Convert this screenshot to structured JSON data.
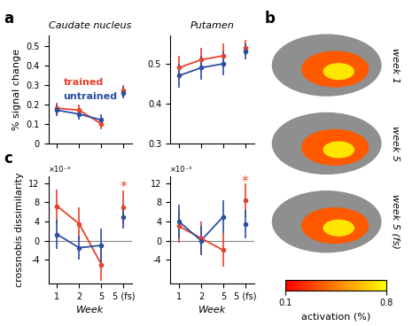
{
  "chart_data": [
    {
      "type": "line",
      "panel": "a",
      "title": "Caudate nucleus",
      "ylabel": "% signal change",
      "categories": [
        "1",
        "2",
        "5",
        "5 (fs)"
      ],
      "ylim": [
        0,
        0.55
      ],
      "yticks": [
        0,
        0.1,
        0.2,
        0.3,
        0.4,
        0.5
      ],
      "tick_labels": "y",
      "legend": "center",
      "marker": "o",
      "series": [
        {
          "name": "trained",
          "color": "#e8412c",
          "values": [
            0.18,
            0.17,
            0.1,
            0.27
          ],
          "errors": [
            0.03,
            0.03,
            0.03,
            0.03
          ]
        },
        {
          "name": "untrained",
          "color": "#2b4ea2",
          "values": [
            0.17,
            0.15,
            0.12,
            0.26
          ],
          "errors": [
            0.03,
            0.03,
            0.03,
            0.03
          ]
        }
      ]
    },
    {
      "type": "line",
      "title": "Putamen",
      "categories": [
        "1",
        "2",
        "5",
        "5 (fs)"
      ],
      "ylim": [
        0.3,
        0.57
      ],
      "yticks": [
        0.3,
        0.4,
        0.5
      ],
      "tick_labels": "y",
      "marker": "o",
      "series": [
        {
          "color": "#e8412c",
          "values": [
            0.49,
            0.51,
            0.52,
            0.54
          ],
          "errors": [
            0.03,
            0.03,
            0.03,
            0.02
          ]
        },
        {
          "color": "#2b4ea2",
          "values": [
            0.47,
            0.49,
            0.5,
            0.53
          ],
          "errors": [
            0.03,
            0.03,
            0.03,
            0.02
          ]
        }
      ]
    },
    {
      "type": "line",
      "panel": "c",
      "ylabel": "crossnobis dissimilarity",
      "xlabel": "Week",
      "axis_note": "×10⁻³",
      "categories": [
        "1",
        "2",
        "5",
        "5 (fs)"
      ],
      "ylim": [
        -9,
        13.5
      ],
      "yticks": [
        -4,
        0,
        4,
        8,
        12
      ],
      "baseline": 0,
      "marker": "o",
      "annotations": [
        {
          "text": "*",
          "x": "5 (fs)",
          "y": 11.2,
          "color": "#e8412c"
        }
      ],
      "series": [
        {
          "color": "#e8412c",
          "values": [
            7.2,
            3.5,
            -5.0,
            7.0
          ],
          "errors": [
            3.5,
            3.5,
            3.5,
            3.5
          ]
        },
        {
          "color": "#2b4ea2",
          "values": [
            1.3,
            -1.5,
            -1.0,
            5.0
          ],
          "errors": [
            3.0,
            2.5,
            3.5,
            2.5
          ]
        }
      ]
    },
    {
      "type": "line",
      "xlabel": "Week",
      "axis_note": "×10⁻³",
      "categories": [
        "1",
        "2",
        "5",
        "5 (fs)"
      ],
      "ylim": [
        -9,
        13.5
      ],
      "yticks": [
        -4,
        0,
        4,
        8,
        12
      ],
      "baseline": 0,
      "marker": "o",
      "annotations": [
        {
          "text": "*",
          "x": "5 (fs)",
          "y": 12.2,
          "color": "#e8412c"
        }
      ],
      "series": [
        {
          "color": "#e8412c",
          "values": [
            3.0,
            0.5,
            -2.0,
            8.5
          ],
          "errors": [
            3.5,
            3.5,
            3.5,
            3.5
          ]
        },
        {
          "color": "#2b4ea2",
          "values": [
            4.0,
            0.0,
            5.0,
            3.5
          ],
          "errors": [
            3.5,
            3.0,
            3.5,
            3.0
          ]
        }
      ]
    },
    {
      "type": "image",
      "panel": "b",
      "labels": [
        "week 1",
        "week 5",
        "week 5 (fs)"
      ],
      "colorbar": {
        "label": "activation (%)",
        "range": [
          0.1,
          0.8
        ],
        "ticks": [
          0.1,
          0.8
        ]
      }
    }
  ]
}
